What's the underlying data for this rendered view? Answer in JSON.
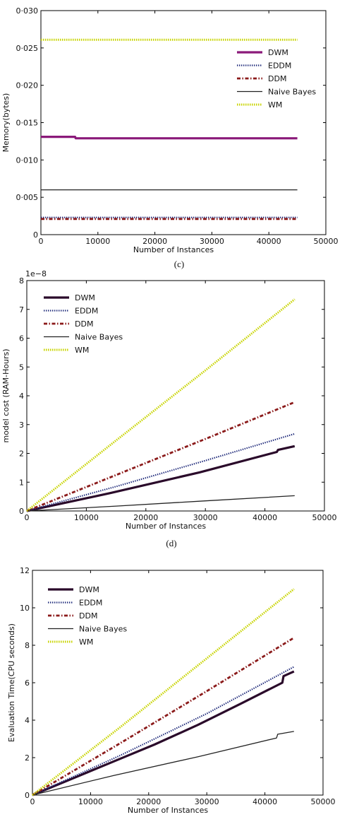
{
  "chart_data": [
    {
      "type": "line",
      "caption": "(c)",
      "xlabel": "Number of Instances",
      "ylabel": "Memory(bytes)",
      "xlim": [
        0,
        50000
      ],
      "ylim": [
        0,
        0.03
      ],
      "xticks": [
        0,
        10000,
        20000,
        30000,
        40000,
        50000
      ],
      "xtick_labels": [
        "0",
        "10000",
        "20000",
        "30000",
        "40000",
        "50000"
      ],
      "yticks": [
        0,
        0.005,
        0.01,
        0.015,
        0.02,
        0.025,
        0.03
      ],
      "ytick_labels": [
        "0",
        "0·005",
        "0·010",
        "0·015",
        "0·020",
        "0·025",
        "0·030"
      ],
      "offset_text": "",
      "legend_position": "upper-right",
      "series": [
        {
          "name": "DWM",
          "color": "#8b1a7a",
          "style": "thick",
          "x": [
            0,
            6000,
            6100,
            45000
          ],
          "y": [
            0.0131,
            0.0131,
            0.0129,
            0.0129
          ]
        },
        {
          "name": "EDDM",
          "color": "#1f2a7a",
          "style": "dotted",
          "x": [
            0,
            45000
          ],
          "y": [
            0.0023,
            0.0023
          ]
        },
        {
          "name": "DDM",
          "color": "#8b1a1a",
          "style": "dashdot",
          "x": [
            0,
            45000
          ],
          "y": [
            0.0021,
            0.0021
          ]
        },
        {
          "name": "Naive Bayes",
          "color": "#222222",
          "style": "solid",
          "x": [
            0,
            45000
          ],
          "y": [
            0.006,
            0.006
          ]
        },
        {
          "name": "WM",
          "color": "#c8d400",
          "style": "dotted-thick",
          "x": [
            0,
            45000
          ],
          "y": [
            0.0261,
            0.0261
          ]
        }
      ]
    },
    {
      "type": "line",
      "caption": "(d)",
      "xlabel": "Number of Instances",
      "ylabel": "model cost (RAM-Hours)",
      "xlim": [
        0,
        50000
      ],
      "ylim": [
        0,
        8
      ],
      "xticks": [
        0,
        10000,
        20000,
        30000,
        40000,
        50000
      ],
      "xtick_labels": [
        "0",
        "10000",
        "20000",
        "30000",
        "40000",
        "50000"
      ],
      "yticks": [
        0,
        1,
        2,
        3,
        4,
        5,
        6,
        7,
        8
      ],
      "ytick_labels": [
        "0",
        "1",
        "2",
        "3",
        "4",
        "5",
        "6",
        "7",
        "8"
      ],
      "offset_text": "1e−8",
      "legend_position": "upper-left",
      "series": [
        {
          "name": "DWM",
          "color": "#2a0a2a",
          "style": "thick",
          "x": [
            0,
            14000,
            29000,
            42000,
            42200,
            45000
          ],
          "y": [
            0,
            0.62,
            1.34,
            2.05,
            2.12,
            2.25
          ]
        },
        {
          "name": "EDDM",
          "color": "#1f2a7a",
          "style": "dotted",
          "x": [
            0,
            15000,
            30000,
            45000
          ],
          "y": [
            0,
            0.85,
            1.75,
            2.68
          ]
        },
        {
          "name": "DDM",
          "color": "#8b1a1a",
          "style": "dashdot",
          "x": [
            0,
            15000,
            30000,
            45000
          ],
          "y": [
            0,
            1.25,
            2.5,
            3.78
          ]
        },
        {
          "name": "Naive Bayes",
          "color": "#222222",
          "style": "solid",
          "x": [
            0,
            15000,
            30000,
            45000
          ],
          "y": [
            0,
            0.17,
            0.35,
            0.53
          ]
        },
        {
          "name": "WM",
          "color": "#c8d400",
          "style": "dotted-thick",
          "x": [
            0,
            15000,
            30000,
            45000
          ],
          "y": [
            0,
            2.45,
            4.88,
            7.35
          ]
        }
      ]
    },
    {
      "type": "line",
      "caption": "",
      "xlabel": "Number of Instances",
      "ylabel": "Evaluation Time(CPU seconds)",
      "xlim": [
        0,
        50000
      ],
      "ylim": [
        0,
        12
      ],
      "xticks": [
        0,
        10000,
        20000,
        30000,
        40000,
        50000
      ],
      "xtick_labels": [
        "0",
        "10000",
        "20000",
        "30000",
        "40000",
        "50000"
      ],
      "yticks": [
        0,
        2,
        4,
        6,
        8,
        10,
        12
      ],
      "ytick_labels": [
        "0",
        "2",
        "4",
        "6",
        "8",
        "10",
        "12"
      ],
      "offset_text": "",
      "legend_position": "upper-left",
      "series": [
        {
          "name": "DWM",
          "color": "#2a0a2a",
          "style": "thick",
          "x": [
            0,
            14000,
            21000,
            28500,
            36000,
            43000,
            43200,
            45000
          ],
          "y": [
            0,
            1.8,
            2.7,
            3.75,
            4.9,
            6.0,
            6.35,
            6.6
          ]
        },
        {
          "name": "EDDM",
          "color": "#1f2a7a",
          "style": "dotted",
          "x": [
            0,
            15000,
            30000,
            45000
          ],
          "y": [
            0,
            2.1,
            4.35,
            6.85
          ]
        },
        {
          "name": "DDM",
          "color": "#8b1a1a",
          "style": "dashdot",
          "x": [
            0,
            15000,
            30000,
            45000
          ],
          "y": [
            0,
            2.75,
            5.55,
            8.4
          ]
        },
        {
          "name": "Naive Bayes",
          "color": "#222222",
          "style": "solid",
          "x": [
            0,
            14000,
            28500,
            42000,
            42200,
            45000
          ],
          "y": [
            0,
            1.05,
            2.05,
            3.05,
            3.25,
            3.4
          ]
        },
        {
          "name": "WM",
          "color": "#c8d400",
          "style": "dotted-thick",
          "x": [
            0,
            15000,
            30000,
            45000
          ],
          "y": [
            0,
            3.6,
            7.3,
            11.0
          ]
        }
      ]
    }
  ]
}
